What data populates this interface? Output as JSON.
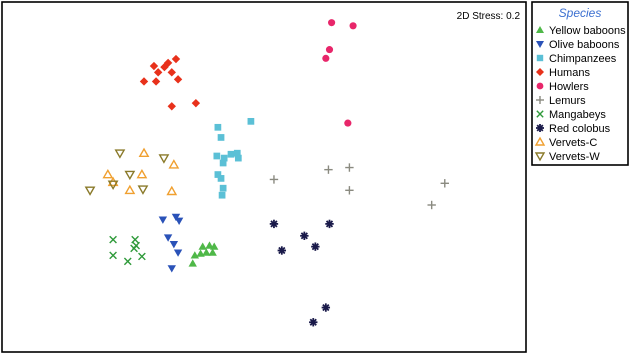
{
  "chart_data": {
    "type": "scatter",
    "annotation": "2D Stress: 0.2",
    "xlim": [
      0,
      100
    ],
    "ylim": [
      0,
      100
    ],
    "legend": {
      "title": "Species",
      "placement": "right"
    },
    "series": [
      {
        "name": "Yellow baboons",
        "marker": "triangle-up",
        "color": "#4fb848",
        "points": [
          [
            37.9,
            28.1
          ],
          [
            38.3,
            30.1
          ],
          [
            39.0,
            28.4
          ],
          [
            39.6,
            30.4
          ],
          [
            40.2,
            28.4
          ],
          [
            40.5,
            30.1
          ],
          [
            36.4,
            25.3
          ],
          [
            36.8,
            27.6
          ]
        ]
      },
      {
        "name": "Olive baboons",
        "marker": "triangle-down",
        "color": "#2a52b8",
        "points": [
          [
            30.7,
            37.8
          ],
          [
            33.2,
            38.6
          ],
          [
            33.8,
            37.5
          ],
          [
            31.7,
            32.7
          ],
          [
            32.8,
            30.8
          ],
          [
            33.6,
            28.4
          ],
          [
            32.4,
            23.9
          ]
        ]
      },
      {
        "name": "Chimpanzees",
        "marker": "square",
        "color": "#5bc0d6",
        "points": [
          [
            41.2,
            64.2
          ],
          [
            41.8,
            61.3
          ],
          [
            47.5,
            65.9
          ],
          [
            41.0,
            56.0
          ],
          [
            42.4,
            55.4
          ],
          [
            42.2,
            54.0
          ],
          [
            43.7,
            56.5
          ],
          [
            44.9,
            56.8
          ],
          [
            45.1,
            55.4
          ],
          [
            41.8,
            49.6
          ],
          [
            41.2,
            50.7
          ],
          [
            42.2,
            46.8
          ],
          [
            42.0,
            44.8
          ]
        ]
      },
      {
        "name": "Humans",
        "marker": "diamond",
        "color": "#e8311b",
        "points": [
          [
            31.7,
            82.6
          ],
          [
            33.2,
            83.7
          ],
          [
            29.0,
            81.7
          ],
          [
            31.0,
            81.4
          ],
          [
            29.8,
            79.9
          ],
          [
            32.4,
            79.9
          ],
          [
            33.6,
            77.9
          ],
          [
            27.1,
            77.3
          ],
          [
            29.4,
            77.3
          ],
          [
            37.0,
            71.1
          ],
          [
            32.4,
            70.2
          ]
        ]
      },
      {
        "name": "Howlers",
        "marker": "circle",
        "color": "#e8266a",
        "points": [
          [
            62.9,
            94.1
          ],
          [
            67.0,
            93.2
          ],
          [
            62.5,
            86.4
          ],
          [
            61.8,
            83.9
          ],
          [
            66.0,
            65.4
          ]
        ]
      },
      {
        "name": "Lemurs",
        "marker": "plus",
        "color": "#8a8a80",
        "points": [
          [
            51.9,
            49.3
          ],
          [
            62.3,
            52.1
          ],
          [
            66.3,
            52.7
          ],
          [
            84.5,
            48.2
          ],
          [
            66.3,
            46.2
          ],
          [
            82.0,
            42.0
          ]
        ]
      },
      {
        "name": "Mangabeys",
        "marker": "x",
        "color": "#2f9a3a",
        "points": [
          [
            21.2,
            32.1
          ],
          [
            25.4,
            32.1
          ],
          [
            25.6,
            30.4
          ],
          [
            25.2,
            29.6
          ],
          [
            21.2,
            27.6
          ],
          [
            26.7,
            27.3
          ],
          [
            24.0,
            25.9
          ]
        ]
      },
      {
        "name": "Red colobus",
        "marker": "asterisk",
        "color": "#1a1a4a",
        "points": [
          [
            51.9,
            36.6
          ],
          [
            62.5,
            36.6
          ],
          [
            57.7,
            33.2
          ],
          [
            53.4,
            29.0
          ],
          [
            59.8,
            30.1
          ],
          [
            61.8,
            12.7
          ],
          [
            59.4,
            8.5
          ]
        ]
      },
      {
        "name": "Vervets-C",
        "marker": "triangle-up-open",
        "color": "#f0a030",
        "points": [
          [
            27.1,
            56.8
          ],
          [
            32.8,
            53.5
          ],
          [
            20.2,
            50.7
          ],
          [
            26.7,
            50.7
          ],
          [
            21.2,
            48.5
          ],
          [
            24.4,
            46.2
          ],
          [
            32.4,
            45.9
          ]
        ]
      },
      {
        "name": "Vervets-W",
        "marker": "triangle-down-open",
        "color": "#8a7a2a",
        "points": [
          [
            22.5,
            56.8
          ],
          [
            30.9,
            55.4
          ],
          [
            24.4,
            50.7
          ],
          [
            21.2,
            47.9
          ],
          [
            26.9,
            46.5
          ],
          [
            16.8,
            46.2
          ]
        ]
      }
    ]
  }
}
